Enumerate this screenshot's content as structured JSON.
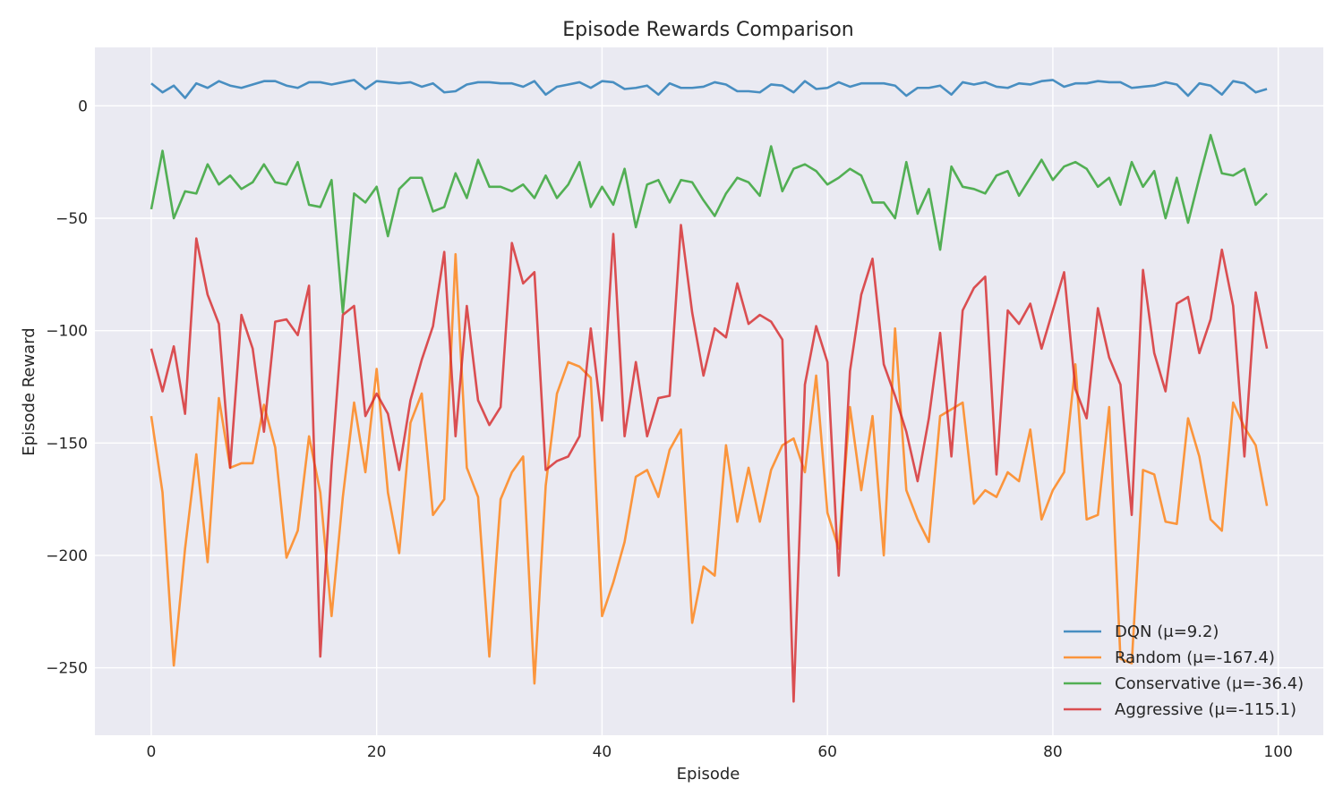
{
  "chart_data": {
    "type": "line",
    "title": "Episode Rewards Comparison",
    "xlabel": "Episode",
    "ylabel": "Episode Reward",
    "xlim": [
      -5,
      104
    ],
    "ylim": [
      -280,
      26
    ],
    "xticks": [
      0,
      20,
      40,
      60,
      80,
      100
    ],
    "yticks": [
      0,
      -50,
      -100,
      -150,
      -200,
      -250
    ],
    "xtick_labels": [
      "0",
      "20",
      "40",
      "60",
      "80",
      "100"
    ],
    "ytick_labels": [
      "0",
      "−50",
      "−100",
      "−150",
      "−200",
      "−250"
    ],
    "grid": true,
    "legend_position": "lower-right",
    "series": [
      {
        "name": "DQN (μ=9.2)",
        "color": "#1f77b4",
        "values": [
          10,
          6,
          9,
          3.5,
          10,
          8,
          11,
          9,
          8,
          9.5,
          11,
          11,
          9,
          8,
          10.5,
          10.5,
          9.5,
          10.5,
          11.5,
          7.5,
          11,
          10.5,
          10,
          10.5,
          8.5,
          10,
          6,
          6.5,
          9.5,
          10.5,
          10.5,
          10,
          10,
          8.5,
          11,
          5,
          8.5,
          9.5,
          10.5,
          8,
          11,
          10.5,
          7.5,
          8,
          9,
          5,
          10,
          8,
          8,
          8.5,
          10.5,
          9.5,
          6.5,
          6.5,
          6,
          9.5,
          9,
          6,
          11,
          7.5,
          8,
          10.5,
          8.5,
          10,
          10,
          10,
          9,
          4.5,
          8,
          8,
          9,
          5,
          10.5,
          9.5,
          10.5,
          8.5,
          8,
          10,
          9.5,
          11,
          11.5,
          8.5,
          10,
          10,
          11,
          10.5,
          10.5,
          8,
          8.5,
          9,
          10.5,
          9.5,
          4.5,
          10,
          9,
          5,
          11,
          10,
          6,
          7.5
        ]
      },
      {
        "name": "Random (μ=-167.4)",
        "color": "#ff7f0e",
        "values": [
          -138,
          -172,
          -249,
          -197,
          -155,
          -203,
          -130,
          -161,
          -159,
          -159,
          -133,
          -152,
          -201,
          -189,
          -147,
          -172,
          -227,
          -174,
          -132,
          -163,
          -117,
          -172,
          -199,
          -141,
          -128,
          -182,
          -175,
          -66,
          -161,
          -174,
          -245,
          -175,
          -163,
          -156,
          -257,
          -169,
          -128,
          -114,
          -116,
          -121,
          -227,
          -212,
          -194,
          -165,
          -162,
          -174,
          -153,
          -144,
          -230,
          -205,
          -209,
          -151,
          -185,
          -161,
          -185,
          -162,
          -151,
          -148,
          -163,
          -120,
          -181,
          -197,
          -134,
          -171,
          -138,
          -200,
          -99,
          -171,
          -184,
          -194,
          -138,
          -135,
          -132,
          -177,
          -171,
          -174,
          -163,
          -167,
          -144,
          -184,
          -171,
          -163,
          -115,
          -184,
          -182,
          -134,
          -246,
          -248,
          -162,
          -164,
          -185,
          -186,
          -139,
          -156,
          -184,
          -189,
          -132,
          -143,
          -151,
          -178
        ]
      },
      {
        "name": "Conservative (μ=-36.4)",
        "color": "#2ca02c",
        "values": [
          -46,
          -20,
          -50,
          -38,
          -39,
          -26,
          -35,
          -31,
          -37,
          -34,
          -26,
          -34,
          -35,
          -25,
          -44,
          -45,
          -33,
          -92,
          -39,
          -43,
          -36,
          -58,
          -37,
          -32,
          -32,
          -47,
          -45,
          -30,
          -41,
          -24,
          -36,
          -36,
          -38,
          -35,
          -41,
          -31,
          -41,
          -35,
          -25,
          -45,
          -36,
          -44,
          -28,
          -54,
          -35,
          -33,
          -43,
          -33,
          -34,
          -42,
          -49,
          -39,
          -32,
          -34,
          -40,
          -18,
          -38,
          -28,
          -26,
          -29,
          -35,
          -32,
          -28,
          -31,
          -43,
          -43,
          -50,
          -25,
          -48,
          -37,
          -64,
          -27,
          -36,
          -37,
          -39,
          -31,
          -29,
          -40,
          -32,
          -24,
          -33,
          -27,
          -25,
          -28,
          -36,
          -32,
          -44,
          -25,
          -36,
          -29,
          -50,
          -32,
          -52,
          -32,
          -13,
          -30,
          -31,
          -28,
          -44,
          -39
        ]
      },
      {
        "name": "Aggressive (μ=-115.1)",
        "color": "#d62728",
        "values": [
          -108,
          -127,
          -107,
          -137,
          -59,
          -84,
          -97,
          -161,
          -93,
          -108,
          -145,
          -96,
          -95,
          -102,
          -80,
          -245,
          -160,
          -93,
          -89,
          -138,
          -128,
          -137,
          -162,
          -131,
          -113,
          -98,
          -65,
          -147,
          -89,
          -131,
          -142,
          -134,
          -61,
          -79,
          -74,
          -162,
          -158,
          -156,
          -147,
          -99,
          -140,
          -57,
          -147,
          -114,
          -147,
          -130,
          -129,
          -53,
          -92,
          -120,
          -99,
          -103,
          -79,
          -97,
          -93,
          -96,
          -104,
          -265,
          -124,
          -98,
          -114,
          -209,
          -118,
          -84,
          -68,
          -115,
          -129,
          -145,
          -167,
          -139,
          -101,
          -156,
          -91,
          -81,
          -76,
          -164,
          -91,
          -97,
          -88,
          -108,
          -91,
          -74,
          -126,
          -139,
          -90,
          -112,
          -124,
          -182,
          -73,
          -110,
          -127,
          -88,
          -85,
          -110,
          -95,
          -64,
          -89,
          -156,
          -83,
          -108
        ]
      }
    ]
  }
}
